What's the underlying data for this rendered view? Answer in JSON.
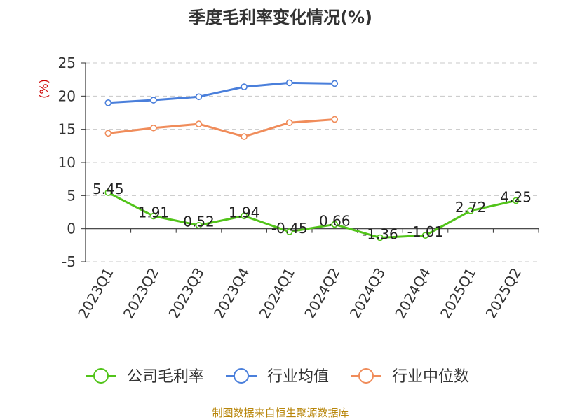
{
  "chart_data": {
    "type": "line",
    "title": "季度毛利率变化情况(%)",
    "ylabel": "(%)",
    "ylim": [
      -5,
      25
    ],
    "yticks": [
      -5,
      0,
      5,
      10,
      15,
      20,
      25
    ],
    "grid": true,
    "legend_position": "bottom",
    "categories": [
      "2023Q1",
      "2023Q2",
      "2023Q3",
      "2023Q4",
      "2024Q1",
      "2024Q2",
      "2024Q3",
      "2024Q4",
      "2025Q1",
      "2025Q2"
    ],
    "series": [
      {
        "name": "公司毛利率",
        "color": "#52c41a",
        "values": [
          5.45,
          1.91,
          0.52,
          1.94,
          -0.45,
          0.66,
          -1.36,
          -1.01,
          2.72,
          4.25
        ],
        "labels": [
          "5.45",
          "1.91",
          "0.52",
          "1.94",
          "-0.45",
          "0.66",
          "-1.36",
          "-1.01",
          "2.72",
          "4.25"
        ]
      },
      {
        "name": "行业均值",
        "color": "#4a7fdb",
        "values": [
          19.0,
          19.4,
          19.9,
          21.4,
          22.0,
          21.9,
          null,
          null,
          null,
          null
        ]
      },
      {
        "name": "行业中位数",
        "color": "#f08c5a",
        "values": [
          14.4,
          15.2,
          15.8,
          13.9,
          16.0,
          16.5,
          null,
          null,
          null,
          null
        ]
      }
    ],
    "source": "制图数据来自恒生聚源数据库"
  }
}
